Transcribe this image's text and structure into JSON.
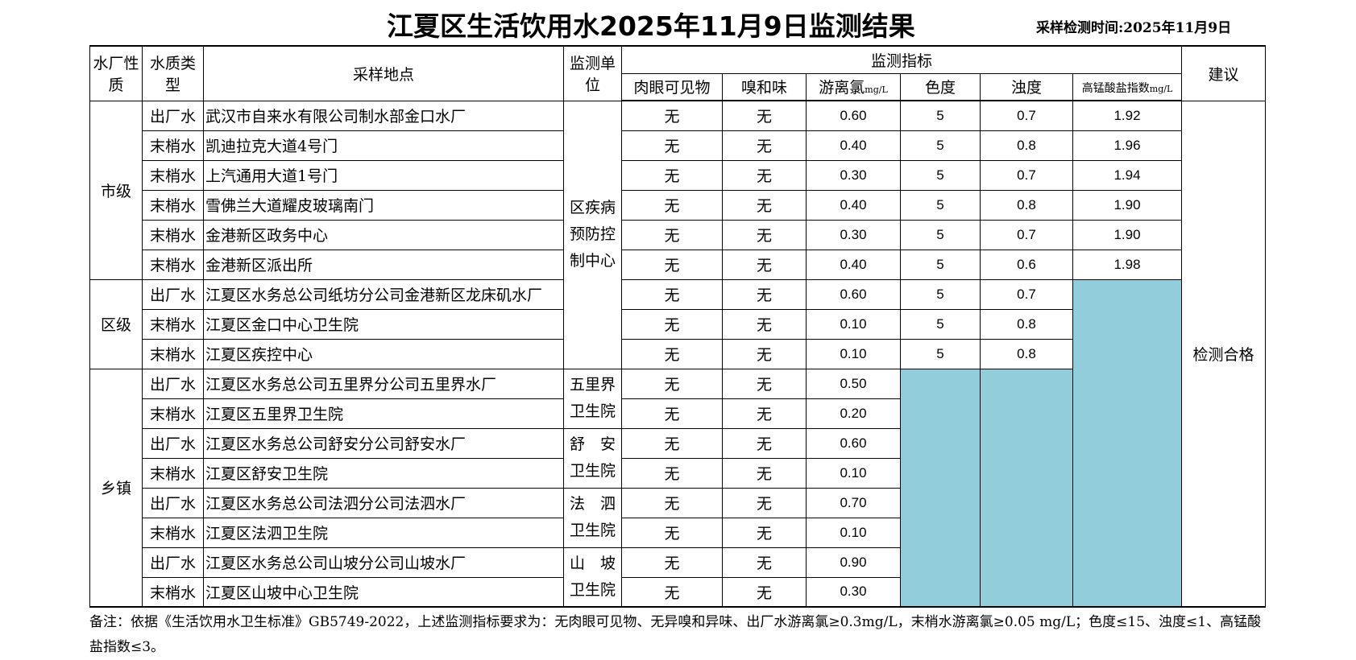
{
  "title": "江夏区生活饮用水2025年11月9日监测结果",
  "sample_time": "采样检测时间:2025年11月9日",
  "headers": {
    "plant_type": "水厂性质",
    "water_type": "水质类型",
    "location": "采样地点",
    "unit": "监测单位",
    "indicators": "监测指标",
    "advice": "建议",
    "visible": "肉眼可见物",
    "odor": "嗅和味",
    "chlorine": "游离氯",
    "chlorine_unit": "mg/L",
    "color": "色度",
    "turbidity": "浊度",
    "permanganate": "高锰酸盐指数",
    "permanganate_unit": "mg/L"
  },
  "groups": {
    "city": "市级",
    "district": "区级",
    "town": "乡镇"
  },
  "units": {
    "cdc": "区疾病预防控制中心",
    "wulijie": "五里界卫生院",
    "shuan": "舒　安卫生院",
    "fasi": "法　泗卫生院",
    "shanpo": "山　坡卫生院"
  },
  "advice": "检测合格",
  "highlight_color": "#92CDDC",
  "rows": [
    {
      "type": "出厂水",
      "location": "武汉市自来水有限公司制水部金口水厂",
      "visible": "无",
      "odor": "无",
      "chlorine": "0.60",
      "color": "5",
      "turbidity": "0.7",
      "permanganate": "1.92"
    },
    {
      "type": "末梢水",
      "location": "凯迪拉克大道4号门",
      "visible": "无",
      "odor": "无",
      "chlorine": "0.40",
      "color": "5",
      "turbidity": "0.8",
      "permanganate": "1.96"
    },
    {
      "type": "末梢水",
      "location": "上汽通用大道1号门",
      "visible": "无",
      "odor": "无",
      "chlorine": "0.30",
      "color": "5",
      "turbidity": "0.7",
      "permanganate": "1.94"
    },
    {
      "type": "末梢水",
      "location": "雪佛兰大道耀皮玻璃南门",
      "visible": "无",
      "odor": "无",
      "chlorine": "0.40",
      "color": "5",
      "turbidity": "0.8",
      "permanganate": "1.90"
    },
    {
      "type": "末梢水",
      "location": "金港新区政务中心",
      "visible": "无",
      "odor": "无",
      "chlorine": "0.30",
      "color": "5",
      "turbidity": "0.7",
      "permanganate": "1.90"
    },
    {
      "type": "末梢水",
      "location": "金港新区派出所",
      "visible": "无",
      "odor": "无",
      "chlorine": "0.40",
      "color": "5",
      "turbidity": "0.6",
      "permanganate": "1.98"
    },
    {
      "type": "出厂水",
      "location": "江夏区水务总公司纸坊分公司金港新区龙床矶水厂",
      "visible": "无",
      "odor": "无",
      "chlorine": "0.60",
      "color": "5",
      "turbidity": "0.7"
    },
    {
      "type": "末梢水",
      "location": "江夏区金口中心卫生院",
      "visible": "无",
      "odor": "无",
      "chlorine": "0.10",
      "color": "5",
      "turbidity": "0.8"
    },
    {
      "type": "末梢水",
      "location": "江夏区疾控中心",
      "visible": "无",
      "odor": "无",
      "chlorine": "0.10",
      "color": "5",
      "turbidity": "0.8"
    },
    {
      "type": "出厂水",
      "location": "江夏区水务总公司五里界分公司五里界水厂",
      "visible": "无",
      "odor": "无",
      "chlorine": "0.50"
    },
    {
      "type": "末梢水",
      "location": "江夏区五里界卫生院",
      "visible": "无",
      "odor": "无",
      "chlorine": "0.20"
    },
    {
      "type": "出厂水",
      "location": "江夏区水务总公司舒安分公司舒安水厂",
      "visible": "无",
      "odor": "无",
      "chlorine": "0.60"
    },
    {
      "type": "末梢水",
      "location": "江夏区舒安卫生院",
      "visible": "无",
      "odor": "无",
      "chlorine": "0.10"
    },
    {
      "type": "出厂水",
      "location": "江夏区水务总公司法泗分公司法泗水厂",
      "visible": "无",
      "odor": "无",
      "chlorine": "0.70"
    },
    {
      "type": "末梢水",
      "location": "江夏区法泗卫生院",
      "visible": "无",
      "odor": "无",
      "chlorine": "0.10"
    },
    {
      "type": "出厂水",
      "location": "江夏区水务总公司山坡分公司山坡水厂",
      "visible": "无",
      "odor": "无",
      "chlorine": "0.90"
    },
    {
      "type": "末梢水",
      "location": "江夏区山坡中心卫生院",
      "visible": "无",
      "odor": "无",
      "chlorine": "0.30"
    }
  ],
  "note": "备注：依据《生活饮用水卫生标准》GB5749-2022，上述监测指标要求为：无肉眼可见物、无异嗅和异味、出厂水游离氯≥0.3mg/L，末梢水游离氯≥0.05 mg/L；色度≤15、浊度≤1、高锰酸盐指数≤3。"
}
